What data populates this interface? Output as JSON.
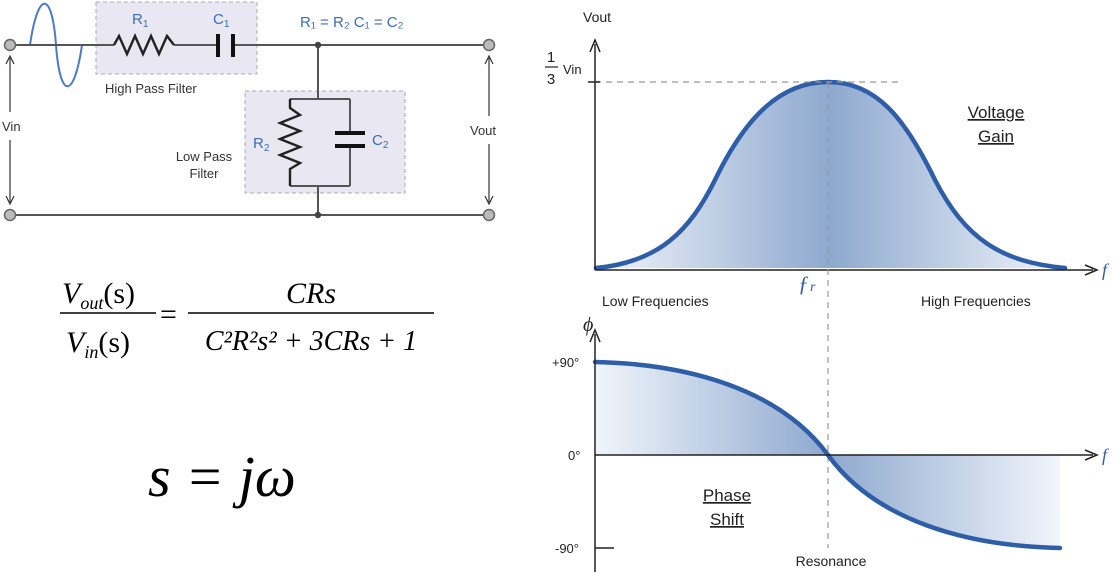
{
  "circuit": {
    "r1": "R",
    "r1_sub": "1",
    "c1": "C",
    "c1_sub": "1",
    "r2": "R",
    "r2_sub": "2",
    "c2": "C",
    "c2_sub": "2",
    "equality": "R₁ = R₂  C₁ = C₂",
    "high_pass_label": "High Pass Filter",
    "low_pass_label_1": "Low Pass",
    "low_pass_label_2": "Filter",
    "vin": "Vin",
    "vout": "Vout"
  },
  "equations": {
    "tf_num_left": "V",
    "tf_num_left_sub": "out",
    "tf_den_left": "V",
    "tf_den_left_sub": "in",
    "tf_s": "(s)",
    "equals": "=",
    "tf_num_right": "CRs",
    "tf_den_right": "C²R²s² + 3CRs + 1",
    "s_def": "s = jω"
  },
  "gain_plot": {
    "y_label": "Vout",
    "peak_frac_num": "1",
    "peak_frac_den": "3",
    "peak_vin": "Vin",
    "x_label": "f",
    "fr_label": "ƒ",
    "fr_sub": "r",
    "low_freq": "Low Frequencies",
    "high_freq": "High Frequencies",
    "title_1": "Voltage",
    "title_2": "Gain"
  },
  "phase_plot": {
    "y_label": "ϕ",
    "plus90": "+90°",
    "zero": "0°",
    "minus90": "-90°",
    "x_label": "f",
    "title_1": "Phase",
    "title_2": "Shift",
    "resonance": "Resonance"
  },
  "colors": {
    "curve": "#2f5ea8",
    "fill_dark": "#8ea9cf",
    "fill_light": "#eef3fa",
    "filter_box": "#e9e7f1",
    "label_blue": "#3a6fb8"
  }
}
